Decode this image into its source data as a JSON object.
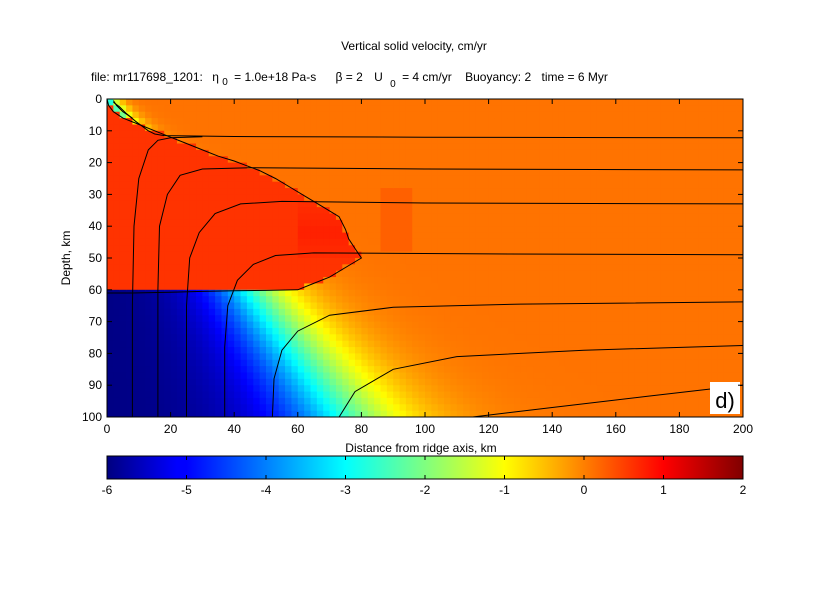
{
  "chart_data": {
    "type": "heatmap",
    "title": "Vertical solid velocity, cm/yr",
    "subtitle": {
      "file": "file: mr117698_1201:",
      "eta": "η",
      "eta_sub": "0",
      "eta_val": "= 1.0e+18 Pa-s",
      "beta": "β = 2",
      "u": "U",
      "u_sub": "0",
      "u_val": "= 4 cm/yr",
      "buoy": "Buoyancy: 2",
      "time": "time = 6 Myr"
    },
    "xlabel": "Distance from ridge axis, km",
    "ylabel": "Depth, km",
    "xlim": [
      0,
      200
    ],
    "ylim": [
      0,
      100
    ],
    "y_reversed": true,
    "xticks": [
      0,
      20,
      40,
      60,
      80,
      100,
      120,
      140,
      160,
      180,
      200
    ],
    "yticks": [
      0,
      10,
      20,
      30,
      40,
      50,
      60,
      70,
      80,
      90,
      100
    ],
    "colorbar": {
      "limits": [
        -6,
        2
      ],
      "ticks": [
        -6,
        -5,
        -4,
        -3,
        -2,
        -1,
        0,
        1,
        2
      ],
      "colormap": "jet"
    },
    "panel_label": "d)",
    "field_notes": {
      "far_field_value": 0.1,
      "high_anomaly_region_value": 0.6,
      "axis_upwelling_min": -6
    },
    "streamlines": [
      [
        [
          2,
          0.5
        ],
        [
          3,
          2
        ],
        [
          5,
          4
        ],
        [
          8,
          6
        ]
      ],
      [
        [
          2,
          1
        ],
        [
          4,
          2.5
        ],
        [
          6,
          4.5
        ],
        [
          9,
          7
        ],
        [
          13,
          10
        ],
        [
          15,
          11
        ],
        [
          18,
          11.5
        ],
        [
          40,
          11.8
        ],
        [
          100,
          12
        ],
        [
          200,
          12.2
        ]
      ],
      [
        [
          8,
          100
        ],
        [
          8,
          65
        ],
        [
          8.5,
          40
        ],
        [
          10,
          25
        ],
        [
          13,
          16
        ],
        [
          16,
          13
        ],
        [
          20,
          12.2
        ],
        [
          30,
          11.9
        ]
      ],
      [
        [
          16,
          100
        ],
        [
          16,
          60
        ],
        [
          16.5,
          40
        ],
        [
          19,
          30
        ],
        [
          23,
          24
        ],
        [
          30,
          22
        ],
        [
          45,
          21.6
        ],
        [
          100,
          22
        ],
        [
          200,
          22.3
        ]
      ],
      [
        [
          25,
          100
        ],
        [
          25,
          65
        ],
        [
          26,
          50
        ],
        [
          29,
          42
        ],
        [
          34,
          36
        ],
        [
          42,
          33
        ],
        [
          55,
          32.2
        ],
        [
          100,
          32.7
        ],
        [
          200,
          33
        ]
      ],
      [
        [
          37,
          100
        ],
        [
          37,
          78
        ],
        [
          38,
          65
        ],
        [
          41,
          57
        ],
        [
          46,
          52
        ],
        [
          53,
          49.2
        ],
        [
          65,
          48.4
        ],
        [
          120,
          48.7
        ],
        [
          200,
          49
        ]
      ],
      [
        [
          52,
          100
        ],
        [
          52.5,
          88
        ],
        [
          55,
          79
        ],
        [
          60,
          73
        ],
        [
          70,
          68
        ],
        [
          90,
          65.5
        ],
        [
          130,
          64.5
        ],
        [
          200,
          63.8
        ]
      ],
      [
        [
          73,
          100
        ],
        [
          78,
          92
        ],
        [
          90,
          85
        ],
        [
          110,
          81
        ],
        [
          150,
          79
        ],
        [
          200,
          77.5
        ]
      ],
      [
        [
          115,
          100
        ],
        [
          140,
          97
        ],
        [
          170,
          93.5
        ],
        [
          200,
          90
        ]
      ]
    ],
    "anomaly_outline": [
      [
        0,
        61
      ],
      [
        8,
        61
      ],
      [
        20,
        60.8
      ],
      [
        30,
        60.5
      ],
      [
        40,
        60.3
      ],
      [
        50,
        60.2
      ],
      [
        60,
        60
      ],
      [
        65,
        58
      ],
      [
        70,
        56
      ],
      [
        75,
        53
      ],
      [
        80,
        50
      ],
      [
        78,
        47
      ],
      [
        76,
        44
      ],
      [
        75,
        41
      ],
      [
        73,
        37
      ],
      [
        68,
        34
      ],
      [
        63,
        31
      ],
      [
        58,
        28
      ],
      [
        53,
        25
      ],
      [
        48,
        22.5
      ],
      [
        44,
        21
      ],
      [
        40,
        19.5
      ],
      [
        35,
        18
      ],
      [
        30,
        16
      ],
      [
        25,
        14
      ],
      [
        20,
        12
      ],
      [
        15,
        10
      ],
      [
        10,
        8
      ],
      [
        5,
        6
      ],
      [
        2,
        4
      ],
      [
        0.5,
        2
      ],
      [
        0,
        0
      ]
    ]
  }
}
